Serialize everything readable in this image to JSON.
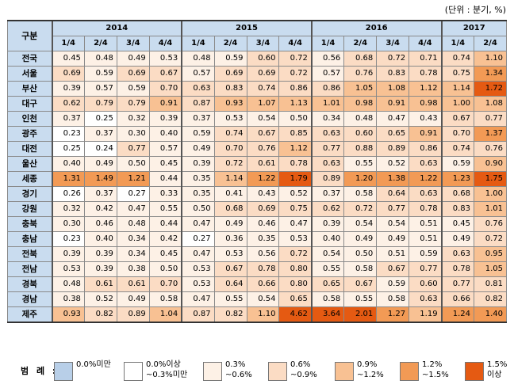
{
  "unit_note": "(단위 : 분기, %)",
  "corner_label": "구분",
  "years": [
    {
      "label": "2014",
      "span": 4
    },
    {
      "label": "2015",
      "span": 4
    },
    {
      "label": "2016",
      "span": 4
    },
    {
      "label": "2017",
      "span": 2
    }
  ],
  "quarters": [
    "1/4",
    "2/4",
    "3/4",
    "4/4",
    "1/4",
    "2/4",
    "3/4",
    "4/4",
    "1/4",
    "2/4",
    "3/4",
    "4/4",
    "1/4",
    "2/4"
  ],
  "rows": [
    {
      "region": "전국",
      "values": [
        "0.45",
        "0.48",
        "0.49",
        "0.53",
        "0.48",
        "0.59",
        "0.60",
        "0.72",
        "0.56",
        "0.68",
        "0.72",
        "0.71",
        "0.74",
        "1.10"
      ]
    },
    {
      "region": "서울",
      "values": [
        "0.69",
        "0.59",
        "0.69",
        "0.67",
        "0.57",
        "0.69",
        "0.69",
        "0.72",
        "0.57",
        "0.76",
        "0.83",
        "0.78",
        "0.75",
        "1.34"
      ]
    },
    {
      "region": "부산",
      "values": [
        "0.39",
        "0.57",
        "0.59",
        "0.70",
        "0.63",
        "0.83",
        "0.74",
        "0.86",
        "0.86",
        "1.05",
        "1.08",
        "1.12",
        "1.14",
        "1.72"
      ]
    },
    {
      "region": "대구",
      "values": [
        "0.62",
        "0.79",
        "0.79",
        "0.91",
        "0.87",
        "0.93",
        "1.07",
        "1.13",
        "1.01",
        "0.98",
        "0.91",
        "0.98",
        "1.00",
        "1.08"
      ]
    },
    {
      "region": "인천",
      "values": [
        "0.37",
        "0.25",
        "0.32",
        "0.39",
        "0.37",
        "0.53",
        "0.54",
        "0.50",
        "0.34",
        "0.48",
        "0.47",
        "0.43",
        "0.67",
        "0.77"
      ]
    },
    {
      "region": "광주",
      "values": [
        "0.23",
        "0.37",
        "0.30",
        "0.40",
        "0.59",
        "0.74",
        "0.67",
        "0.85",
        "0.63",
        "0.60",
        "0.65",
        "0.91",
        "0.70",
        "1.37"
      ]
    },
    {
      "region": "대전",
      "values": [
        "0.25",
        "0.24",
        "0.77",
        "0.57",
        "0.49",
        "0.70",
        "0.76",
        "1.12",
        "0.77",
        "0.88",
        "0.89",
        "0.86",
        "0.74",
        "0.76"
      ]
    },
    {
      "region": "울산",
      "values": [
        "0.40",
        "0.49",
        "0.50",
        "0.45",
        "0.39",
        "0.72",
        "0.61",
        "0.78",
        "0.63",
        "0.55",
        "0.52",
        "0.63",
        "0.59",
        "0.90"
      ]
    },
    {
      "region": "세종",
      "values": [
        "1.31",
        "1.49",
        "1.21",
        "0.44",
        "0.35",
        "1.14",
        "1.22",
        "1.79",
        "0.89",
        "1.20",
        "1.38",
        "1.22",
        "1.23",
        "1.75"
      ]
    },
    {
      "region": "경기",
      "values": [
        "0.26",
        "0.37",
        "0.27",
        "0.33",
        "0.35",
        "0.41",
        "0.43",
        "0.52",
        "0.37",
        "0.58",
        "0.64",
        "0.63",
        "0.68",
        "1.00"
      ]
    },
    {
      "region": "강원",
      "values": [
        "0.32",
        "0.42",
        "0.47",
        "0.55",
        "0.50",
        "0.68",
        "0.69",
        "0.75",
        "0.62",
        "0.72",
        "0.77",
        "0.78",
        "0.83",
        "1.01"
      ]
    },
    {
      "region": "충북",
      "values": [
        "0.30",
        "0.46",
        "0.48",
        "0.44",
        "0.47",
        "0.49",
        "0.46",
        "0.47",
        "0.39",
        "0.54",
        "0.54",
        "0.51",
        "0.45",
        "0.76"
      ]
    },
    {
      "region": "충남",
      "values": [
        "0.23",
        "0.40",
        "0.34",
        "0.42",
        "0.27",
        "0.36",
        "0.35",
        "0.53",
        "0.40",
        "0.49",
        "0.49",
        "0.51",
        "0.49",
        "0.72"
      ]
    },
    {
      "region": "전북",
      "values": [
        "0.39",
        "0.39",
        "0.34",
        "0.45",
        "0.47",
        "0.53",
        "0.56",
        "0.72",
        "0.54",
        "0.50",
        "0.51",
        "0.59",
        "0.63",
        "0.95"
      ]
    },
    {
      "region": "전남",
      "values": [
        "0.53",
        "0.39",
        "0.38",
        "0.50",
        "0.53",
        "0.67",
        "0.78",
        "0.80",
        "0.55",
        "0.58",
        "0.67",
        "0.77",
        "0.78",
        "1.05"
      ]
    },
    {
      "region": "경북",
      "values": [
        "0.48",
        "0.61",
        "0.61",
        "0.70",
        "0.53",
        "0.64",
        "0.66",
        "0.80",
        "0.65",
        "0.67",
        "0.59",
        "0.60",
        "0.77",
        "0.81"
      ]
    },
    {
      "region": "경남",
      "values": [
        "0.38",
        "0.52",
        "0.49",
        "0.58",
        "0.47",
        "0.55",
        "0.54",
        "0.65",
        "0.58",
        "0.55",
        "0.58",
        "0.63",
        "0.66",
        "0.82"
      ]
    },
    {
      "region": "제주",
      "values": [
        "0.93",
        "0.82",
        "0.89",
        "1.04",
        "0.87",
        "0.82",
        "1.10",
        "4.62",
        "3.64",
        "2.01",
        "1.27",
        "1.19",
        "1.24",
        "1.40"
      ]
    }
  ],
  "legend": {
    "title": "범 례 :",
    "items": [
      {
        "label": "0.0%미만",
        "color": "#b8cfe8"
      },
      {
        "label": "0.0%이상\n~0.3%미만",
        "color": "#ffffff"
      },
      {
        "label": "0.3%\n~0.6%",
        "color": "#fdf1e6"
      },
      {
        "label": "0.6%\n~0.9%",
        "color": "#fbdcc4"
      },
      {
        "label": "0.9%\n~1.2%",
        "color": "#f8c193"
      },
      {
        "label": "1.2%\n~1.5%",
        "color": "#f29a55"
      },
      {
        "label": "1.5%\n이상",
        "color": "#e55a12"
      }
    ]
  }
}
